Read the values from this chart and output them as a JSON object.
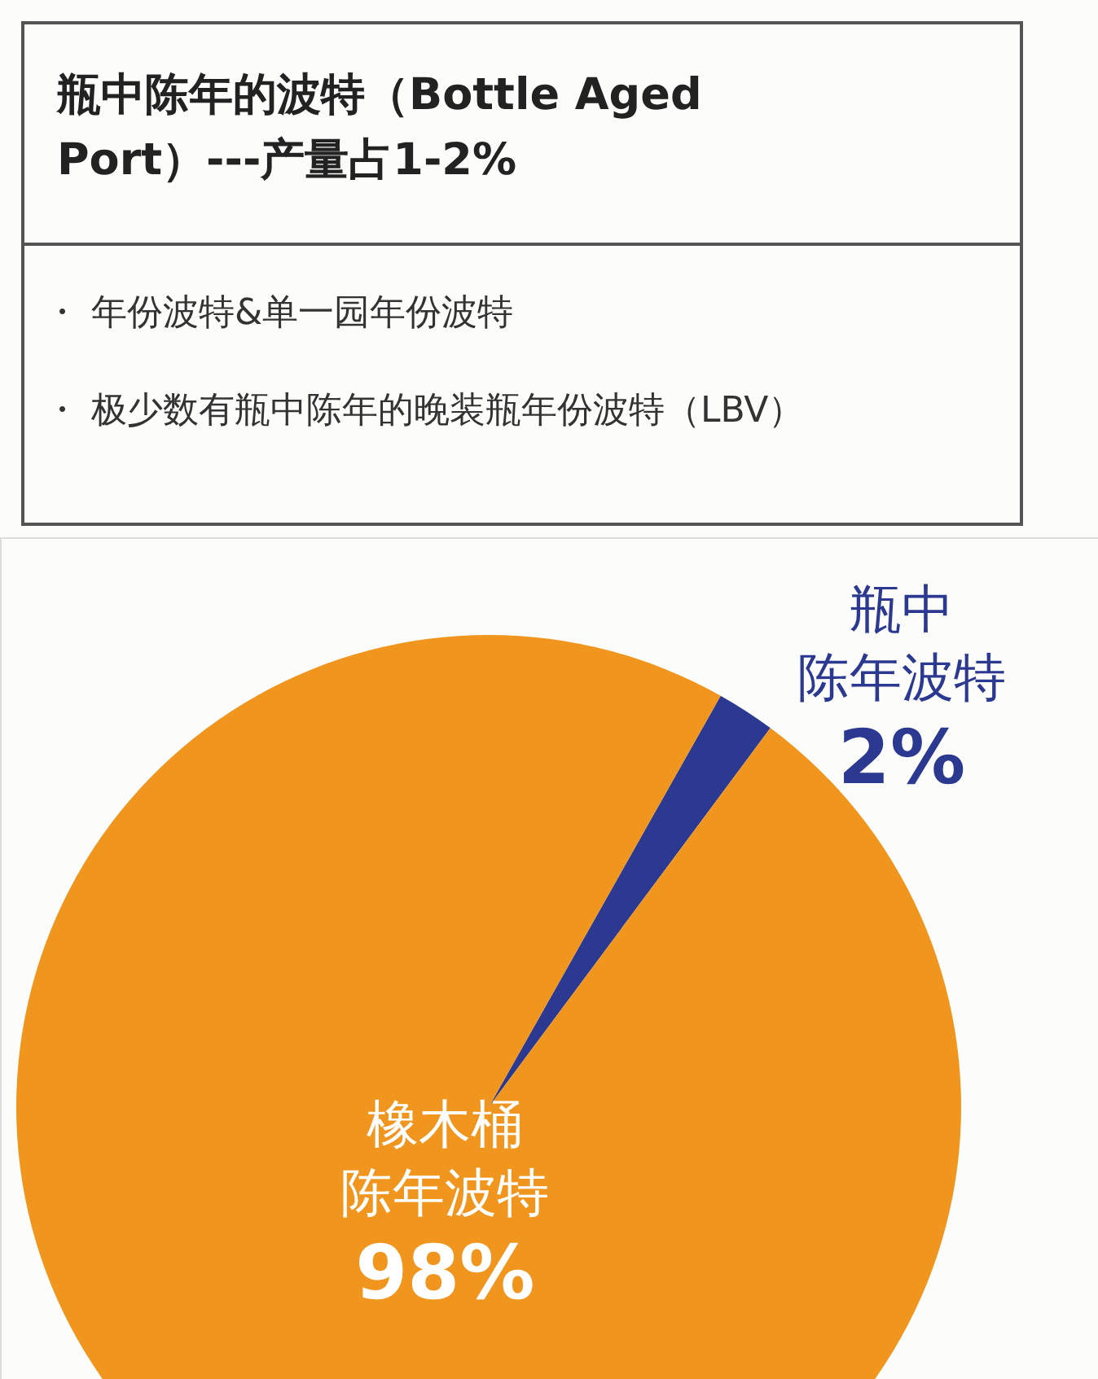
{
  "chart_data": {
    "type": "pie",
    "title": "瓶中陈年的波特（Bottle Aged Port）---产量占1-2%",
    "annotations": [
      "・ 年份波特&单一园年份波特",
      "・ 极少数有瓶中陈年的晚装瓶年份波特（LBV）"
    ],
    "categories": [
      "瓶中陈年波特",
      "橡木桶陈年波特"
    ],
    "values": [
      2,
      98
    ],
    "colors": [
      "#2b3990",
      "#f0951e"
    ],
    "value_labels": [
      "2%",
      "98%"
    ]
  }
}
